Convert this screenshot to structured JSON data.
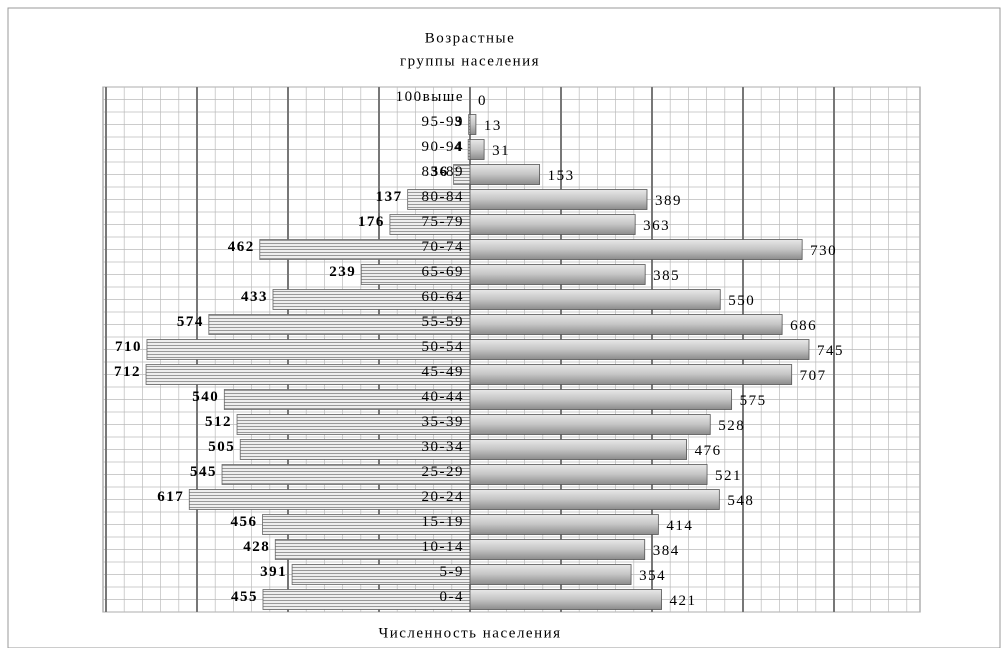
{
  "chart_data": {
    "type": "pyramid",
    "title": [
      "Возрастные",
      "группы населения"
    ],
    "xlabel": "Численность населения",
    "categories": [
      "100выше",
      "95-99",
      "90-94",
      "85-89",
      "80-84",
      "75-79",
      "70-74",
      "65-69",
      "60-64",
      "55-59",
      "50-54",
      "45-49",
      "40-44",
      "35-39",
      "30-34",
      "25-29",
      "20-24",
      "15-19",
      "10-14",
      "5-9",
      "0-4"
    ],
    "series": [
      {
        "color": "#b8b8b8",
        "values": [
          null,
          3,
          4,
          36,
          137,
          176,
          462,
          239,
          433,
          574,
          710,
          712,
          540,
          512,
          505,
          545,
          617,
          456,
          428,
          391,
          455
        ]
      },
      {
        "color": "#b0b0b0",
        "values": [
          0,
          13,
          31,
          153,
          389,
          363,
          730,
          385,
          550,
          686,
          745,
          707,
          575,
          528,
          476,
          521,
          548,
          414,
          384,
          354,
          421
        ]
      }
    ],
    "grid": true
  }
}
